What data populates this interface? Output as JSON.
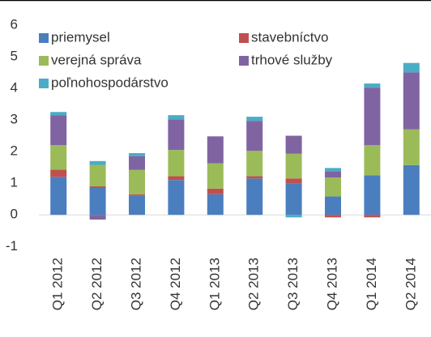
{
  "chart_data": {
    "type": "stacked_bar",
    "categories": [
      "Q1 2012",
      "Q2 2012",
      "Q3 2012",
      "Q4 2012",
      "Q1 2013",
      "Q2 2013",
      "Q3 2013",
      "Q4 2013",
      "Q1 2014",
      "Q2 2014"
    ],
    "series": [
      {
        "name": "priemysel",
        "color": "#4a7ebf",
        "values": [
          1.2,
          0.85,
          0.6,
          1.1,
          0.65,
          1.15,
          1.0,
          0.58,
          1.25,
          1.57
        ]
      },
      {
        "name": "stavebníctvo",
        "color": "#c0504d",
        "values": [
          0.23,
          0.05,
          0.05,
          0.12,
          0.18,
          0.07,
          0.15,
          -0.08,
          -0.08,
          0
        ]
      },
      {
        "name": "verejná správa",
        "color": "#9bbb59",
        "values": [
          0.77,
          0.68,
          0.77,
          0.83,
          0.8,
          0.8,
          0.78,
          0.6,
          0.95,
          1.13
        ]
      },
      {
        "name": "trhové služby",
        "color": "#8064a2",
        "values": [
          0.95,
          -0.15,
          0.43,
          0.97,
          0.85,
          0.95,
          0.57,
          0.2,
          1.82,
          1.8
        ]
      },
      {
        "name": "poľnohospodárstvo",
        "color": "#4bacc6",
        "values": [
          0.1,
          0.12,
          0.1,
          0.13,
          0,
          0.13,
          -0.08,
          0.1,
          0.13,
          0.3
        ]
      }
    ],
    "ylim": [
      -1.3,
      6.2
    ],
    "yticks": [
      -1,
      0,
      1,
      2,
      3,
      4,
      5,
      6
    ],
    "grid": false,
    "legend": "top-left"
  }
}
